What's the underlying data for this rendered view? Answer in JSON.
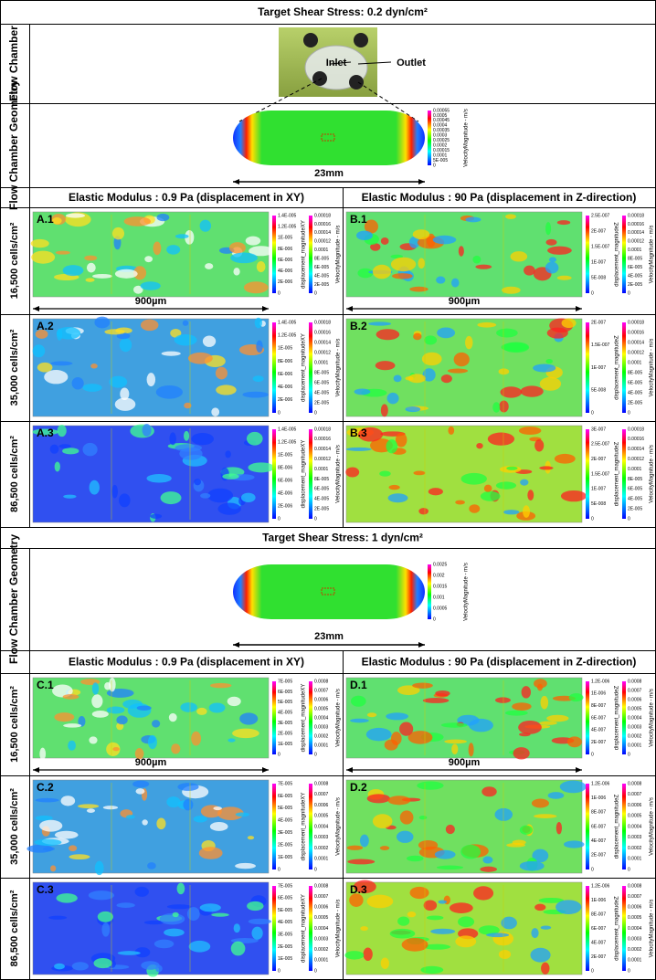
{
  "sections": [
    {
      "title": "Target Shear Stress: 0.2 dyn/cm²",
      "flow_chamber_label": "Flow Chamber",
      "inlet": "Inlet",
      "outlet": "Outlet",
      "geometry_label": "Flow Chamber Geometry",
      "geometry_scale": "23mm",
      "geometry_colorbar": {
        "title": "VelocityMagnitude - m/s",
        "ticks": [
          "0.00055",
          "0.0005",
          "0.00045",
          "0.0004",
          "0.00035",
          "0.0003",
          "0.00025",
          "0.0002",
          "0.00015",
          "0.0001",
          "5E-005",
          "0"
        ]
      },
      "columns": [
        "Elastic Modulus : 0.9 Pa (displacement in XY)",
        "Elastic Modulus : 90 Pa (displacement in Z-direction)"
      ],
      "rows": [
        {
          "label": "16,500 cells/cm²",
          "scale": "900µm",
          "panels": [
            {
              "id": "A.1",
              "disp_title": "displacement_magnitudeXY",
              "disp_ticks": [
                "1.4E-005",
                "1.2E-005",
                "1E-005",
                "8E-006",
                "6E-006",
                "4E-006",
                "2E-006",
                "0"
              ],
              "vel_title": "VelocityMagnitude - m/s",
              "vel_ticks": [
                "0.00018",
                "0.00016",
                "0.00014",
                "0.00012",
                "0.0001",
                "8E-005",
                "6E-005",
                "4E-005",
                "2E-005",
                "0"
              ]
            },
            {
              "id": "B.1",
              "disp_title": "displacement_magnitudeZ",
              "disp_ticks": [
                "2.5E-007",
                "2E-007",
                "1.5E-007",
                "1E-007",
                "5E-008",
                "0"
              ],
              "vel_title": "VelocityMagnitude - m/s",
              "vel_ticks": [
                "0.00018",
                "0.00016",
                "0.00014",
                "0.00012",
                "0.0001",
                "8E-005",
                "6E-005",
                "4E-005",
                "2E-005",
                "0"
              ]
            }
          ]
        },
        {
          "label": "35,000 cells/cm²",
          "panels": [
            {
              "id": "A.2",
              "disp_title": "displacement_magnitudeXY",
              "disp_ticks": [
                "1.4E-005",
                "1.2E-005",
                "1E-005",
                "8E-006",
                "6E-006",
                "4E-006",
                "2E-006",
                "0"
              ],
              "vel_title": "VelocityMagnitude - m/s",
              "vel_ticks": [
                "0.00018",
                "0.00016",
                "0.00014",
                "0.00012",
                "0.0001",
                "8E-005",
                "6E-005",
                "4E-005",
                "2E-005",
                "0"
              ]
            },
            {
              "id": "B.2",
              "disp_title": "displacement_magnitudeZ",
              "disp_ticks": [
                "2E-007",
                "1.5E-007",
                "1E-007",
                "5E-008",
                "0"
              ],
              "vel_title": "VelocityMagnitude - m/s",
              "vel_ticks": [
                "0.00018",
                "0.00016",
                "0.00014",
                "0.00012",
                "0.0001",
                "8E-005",
                "6E-005",
                "4E-005",
                "2E-005",
                "0"
              ]
            }
          ]
        },
        {
          "label": "86,500 cells/cm²",
          "panels": [
            {
              "id": "A.3",
              "disp_title": "displacement_magnitudeXY",
              "disp_ticks": [
                "1.4E-005",
                "1.2E-005",
                "1E-005",
                "8E-006",
                "6E-006",
                "4E-006",
                "2E-006",
                "0"
              ],
              "vel_title": "VelocityMagnitude - m/s",
              "vel_ticks": [
                "0.00018",
                "0.00016",
                "0.00014",
                "0.00012",
                "0.0001",
                "8E-005",
                "6E-005",
                "4E-005",
                "2E-005",
                "0"
              ]
            },
            {
              "id": "B.3",
              "disp_title": "displacement_magnitudeZ",
              "disp_ticks": [
                "3E-007",
                "2.5E-007",
                "2E-007",
                "1.5E-007",
                "1E-007",
                "5E-008",
                "0"
              ],
              "vel_title": "VelocityMagnitude - m/s",
              "vel_ticks": [
                "0.00018",
                "0.00016",
                "0.00014",
                "0.00012",
                "0.0001",
                "8E-005",
                "6E-005",
                "4E-005",
                "2E-005",
                "0"
              ]
            }
          ]
        }
      ]
    },
    {
      "title": "Target Shear Stress: 1 dyn/cm²",
      "geometry_label": "Flow Chamber Geometry",
      "geometry_scale": "23mm",
      "geometry_colorbar": {
        "title": "VelocityMagnitude - m/s",
        "ticks": [
          "0.0025",
          "0.002",
          "0.0015",
          "0.001",
          "0.0005",
          "0"
        ]
      },
      "columns": [
        "Elastic Modulus : 0.9 Pa (displacement in XY)",
        "Elastic Modulus : 90 Pa (displacement in Z-direction)"
      ],
      "rows": [
        {
          "label": "16,500 cells/cm²",
          "scale": "900µm",
          "panels": [
            {
              "id": "C.1",
              "disp_title": "displacement_magnitudeXY",
              "disp_ticks": [
                "7E-005",
                "6E-005",
                "5E-005",
                "4E-005",
                "3E-005",
                "2E-005",
                "1E-005",
                "0"
              ],
              "vel_title": "VelocityMagnitude - m/s",
              "vel_ticks": [
                "0.0008",
                "0.0007",
                "0.0006",
                "0.0005",
                "0.0004",
                "0.0003",
                "0.0002",
                "0.0001",
                "0"
              ]
            },
            {
              "id": "D.1",
              "disp_title": "displacement_magnitudeZ",
              "disp_ticks": [
                "1.2E-006",
                "1E-006",
                "8E-007",
                "6E-007",
                "4E-007",
                "2E-007",
                "0"
              ],
              "vel_title": "VelocityMagnitude - m/s",
              "vel_ticks": [
                "0.0008",
                "0.0007",
                "0.0006",
                "0.0005",
                "0.0004",
                "0.0003",
                "0.0002",
                "0.0001",
                "0"
              ]
            }
          ]
        },
        {
          "label": "35,000 cells/cm²",
          "panels": [
            {
              "id": "C.2",
              "disp_title": "displacement_magnitudeXY",
              "disp_ticks": [
                "7E-005",
                "6E-005",
                "5E-005",
                "4E-005",
                "3E-005",
                "2E-005",
                "1E-005",
                "0"
              ],
              "vel_title": "VelocityMagnitude - m/s",
              "vel_ticks": [
                "0.0008",
                "0.0007",
                "0.0006",
                "0.0005",
                "0.0004",
                "0.0003",
                "0.0002",
                "0.0001",
                "0"
              ]
            },
            {
              "id": "D.2",
              "disp_title": "displacement_magnitudeZ",
              "disp_ticks": [
                "1.2E-006",
                "1E-006",
                "8E-007",
                "6E-007",
                "4E-007",
                "2E-007",
                "0"
              ],
              "vel_title": "VelocityMagnitude - m/s",
              "vel_ticks": [
                "0.0008",
                "0.0007",
                "0.0006",
                "0.0005",
                "0.0004",
                "0.0003",
                "0.0002",
                "0.0001",
                "0"
              ]
            }
          ]
        },
        {
          "label": "86,500 cells/cm²",
          "panels": [
            {
              "id": "C.3",
              "disp_title": "displacement_magnitudeXY",
              "disp_ticks": [
                "7E-005",
                "6E-005",
                "5E-005",
                "4E-005",
                "3E-005",
                "2E-005",
                "1E-005",
                "0"
              ],
              "vel_title": "VelocityMagnitude - m/s",
              "vel_ticks": [
                "0.0008",
                "0.0007",
                "0.0006",
                "0.0005",
                "0.0004",
                "0.0003",
                "0.0002",
                "0.0001",
                "0"
              ]
            },
            {
              "id": "D.3",
              "disp_title": "displacement_magnitudeZ",
              "disp_ticks": [
                "1.2E-006",
                "1E-006",
                "8E-007",
                "6E-007",
                "4E-007",
                "2E-007",
                "0"
              ],
              "vel_title": "VelocityMagnitude - m/s",
              "vel_ticks": [
                "0.0008",
                "0.0007",
                "0.0006",
                "0.0005",
                "0.0004",
                "0.0003",
                "0.0002",
                "0.0001",
                "0"
              ]
            }
          ]
        }
      ]
    }
  ]
}
